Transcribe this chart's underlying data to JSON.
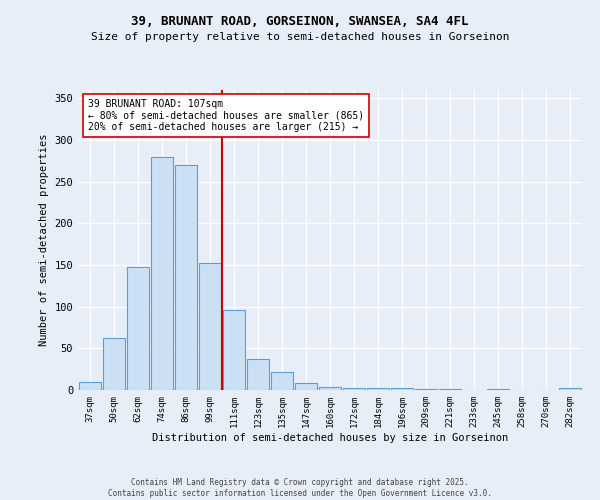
{
  "title1": "39, BRUNANT ROAD, GORSEINON, SWANSEA, SA4 4FL",
  "title2": "Size of property relative to semi-detached houses in Gorseinon",
  "xlabel": "Distribution of semi-detached houses by size in Gorseinon",
  "ylabel": "Number of semi-detached properties",
  "categories": [
    "37sqm",
    "50sqm",
    "62sqm",
    "74sqm",
    "86sqm",
    "99sqm",
    "111sqm",
    "123sqm",
    "135sqm",
    "147sqm",
    "160sqm",
    "172sqm",
    "184sqm",
    "196sqm",
    "209sqm",
    "221sqm",
    "233sqm",
    "245sqm",
    "258sqm",
    "270sqm",
    "282sqm"
  ],
  "values": [
    10,
    63,
    148,
    280,
    270,
    152,
    96,
    37,
    22,
    8,
    4,
    3,
    3,
    2,
    1,
    1,
    0,
    1,
    0,
    0,
    2
  ],
  "bar_color": "#cce0f5",
  "bar_edge_color": "#5a9fd4",
  "vline_x_index": 5.5,
  "vline_color": "#cc0000",
  "annotation_text": "39 BRUNANT ROAD: 107sqm\n← 80% of semi-detached houses are smaller (865)\n20% of semi-detached houses are larger (215) →",
  "annotation_box_color": "white",
  "annotation_box_edge_color": "#cc0000",
  "ylim": [
    0,
    360
  ],
  "yticks": [
    0,
    50,
    100,
    150,
    200,
    250,
    300,
    350
  ],
  "bg_color": "#e8eef8",
  "grid_color": "#ffffff",
  "footer1": "Contains HM Land Registry data © Crown copyright and database right 2025.",
  "footer2": "Contains public sector information licensed under the Open Government Licence v3.0."
}
